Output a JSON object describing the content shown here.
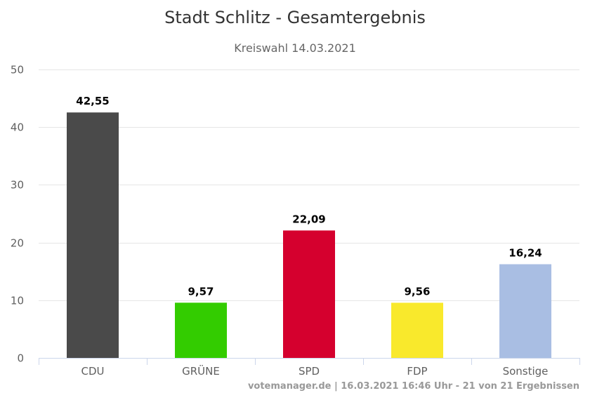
{
  "chart_data": {
    "type": "bar",
    "title": "Stadt Schlitz - Gesamtergebnis",
    "subtitle": "Kreiswahl 14.03.2021",
    "categories": [
      "CDU",
      "GRÜNE",
      "SPD",
      "FDP",
      "Sonstige"
    ],
    "values": [
      42.55,
      9.57,
      22.09,
      9.56,
      16.24
    ],
    "value_labels": [
      "42,55",
      "9,57",
      "22,09",
      "9,56",
      "16,24"
    ],
    "colors": [
      "#4a4a4a",
      "#33cc00",
      "#d5002e",
      "#f9e92c",
      "#a9bee3"
    ],
    "ylim": [
      0,
      50
    ],
    "yticks": [
      0,
      10,
      20,
      30,
      40,
      50
    ],
    "grid": true,
    "xlabel": "",
    "ylabel": ""
  },
  "credits": "votemanager.de | 16.03.2021 16:46 Uhr - 21 von 21 Ergebnissen"
}
